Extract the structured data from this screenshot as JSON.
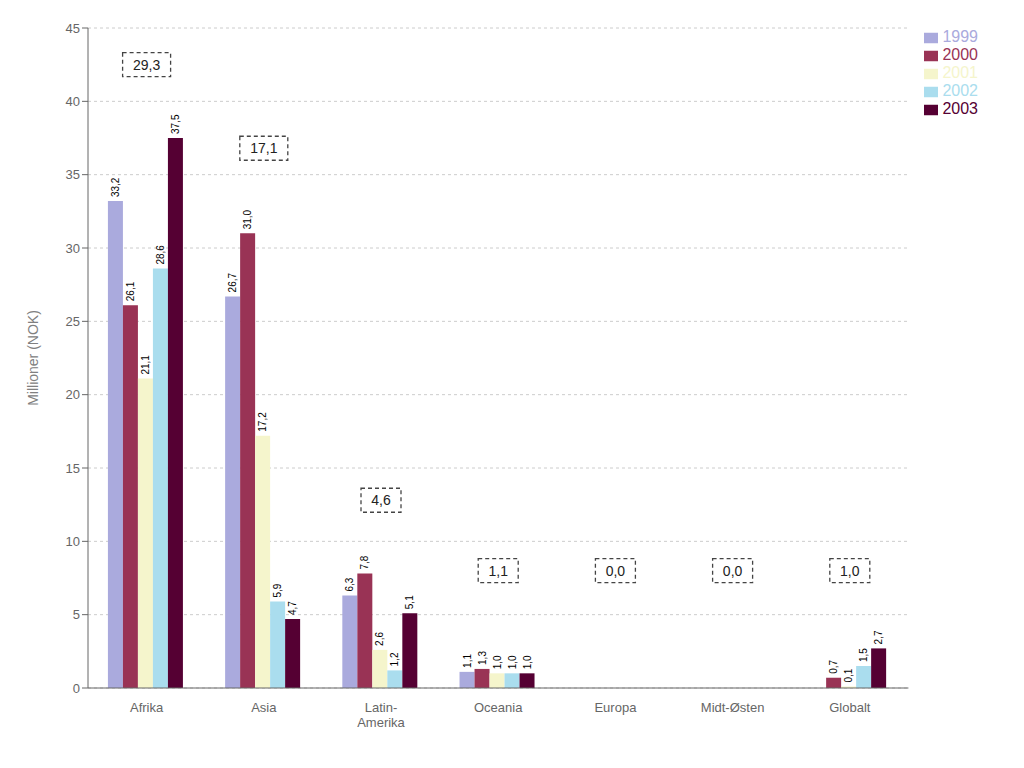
{
  "chart_data": {
    "type": "bar",
    "categories": [
      "Afrika",
      "Asia",
      "Latin-\nAmerika",
      "Oceania",
      "Europa",
      "Midt-Østen",
      "Globalt"
    ],
    "series": [
      {
        "name": "1999",
        "color": "#aaaadd",
        "values": [
          33.2,
          26.7,
          6.3,
          1.1,
          0.0,
          0.0,
          0.0
        ],
        "value_labels": [
          "33,2",
          "26,7",
          "6,3",
          "1,1",
          null,
          null,
          null
        ]
      },
      {
        "name": "2000",
        "color": "#993355",
        "values": [
          26.1,
          31.0,
          7.8,
          1.3,
          0.0,
          0.0,
          0.7
        ],
        "value_labels": [
          "26,1",
          "31,0",
          "7,8",
          "1,3",
          null,
          null,
          "0,7"
        ]
      },
      {
        "name": "2001",
        "color": "#f5f5cc",
        "values": [
          21.1,
          17.2,
          2.6,
          1.0,
          0.0,
          0.0,
          0.1
        ],
        "value_labels": [
          "21,1",
          "17,2",
          "2,6",
          "1,0",
          null,
          null,
          "0,1"
        ]
      },
      {
        "name": "2002",
        "color": "#aaddee",
        "values": [
          28.6,
          5.9,
          1.2,
          1.0,
          0.0,
          0.0,
          1.5
        ],
        "value_labels": [
          "28,6",
          "5,9",
          "1,2",
          "1,0",
          null,
          null,
          "1,5"
        ]
      },
      {
        "name": "2003",
        "color": "#550033",
        "values": [
          37.5,
          4.7,
          5.1,
          1.0,
          0.0,
          0.0,
          2.7
        ],
        "value_labels": [
          "37,5",
          "4,7",
          "5,1",
          "1,0",
          null,
          null,
          "2,7"
        ]
      }
    ],
    "ylabel": "Millioner (NOK)",
    "ylim": [
      0,
      45
    ],
    "yticks": [
      0,
      5,
      10,
      15,
      20,
      25,
      30,
      35,
      40,
      45
    ],
    "grid": true,
    "legend": "upper right",
    "data_labels": true,
    "annotations": [
      {
        "text": "29,3",
        "x": "Afrika",
        "y": 42.5
      },
      {
        "text": "17,1",
        "x": "Asia",
        "y": 36.8
      },
      {
        "text": "4,6",
        "x": "Latin-\nAmerika",
        "y": 12.8
      },
      {
        "text": "1,1",
        "x": "Oceania",
        "y": 8.0
      },
      {
        "text": "0,0",
        "x": "Europa",
        "y": 8.0
      },
      {
        "text": "0,0",
        "x": "Midt-Østen",
        "y": 8.0
      },
      {
        "text": "1,0",
        "x": "Globalt",
        "y": 8.0
      }
    ]
  }
}
